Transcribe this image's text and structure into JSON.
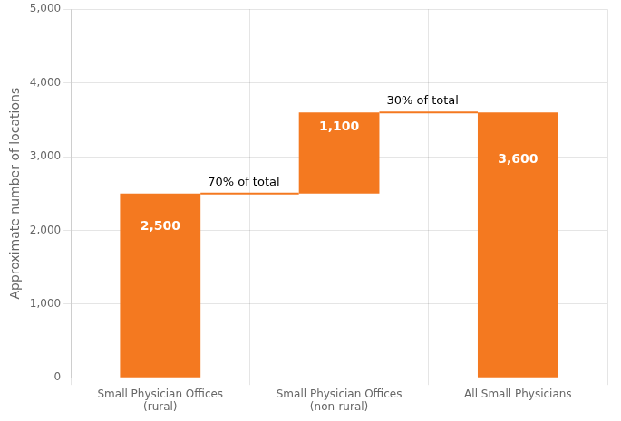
{
  "chart_data": {
    "type": "bar",
    "categories": [
      "Small Physician Offices\n(rural)",
      "Small Physician Offices\n(non-rural)",
      "All Small Physicians"
    ],
    "values": [
      2500,
      1100,
      3600
    ],
    "bottoms": [
      0,
      2500,
      0
    ],
    "value_labels": [
      "2,500",
      "1,100",
      "3,600"
    ],
    "data_labels": true,
    "color": "#F47920",
    "ylabel": "Approximate number of locations",
    "ylim": [
      0,
      5000
    ],
    "yticks": [
      0,
      {
        "value": 1000,
        "label": "1,000"
      },
      {
        "value": 2000,
        "label": "2,000"
      },
      {
        "value": 3000,
        "label": "3,000"
      },
      {
        "value": 4000,
        "label": "4,000"
      },
      {
        "value": 5000,
        "label": "5,000"
      }
    ],
    "grid": true,
    "annotations": [
      {
        "text": "70% of total",
        "y": 2500,
        "category": "Small Physician Offices\n(rural)",
        "color": "#F47920"
      },
      {
        "text": "30% of total",
        "y": 3600,
        "category": "Small Physician Offices\n(non-rural)",
        "color": "#F47920"
      }
    ]
  }
}
